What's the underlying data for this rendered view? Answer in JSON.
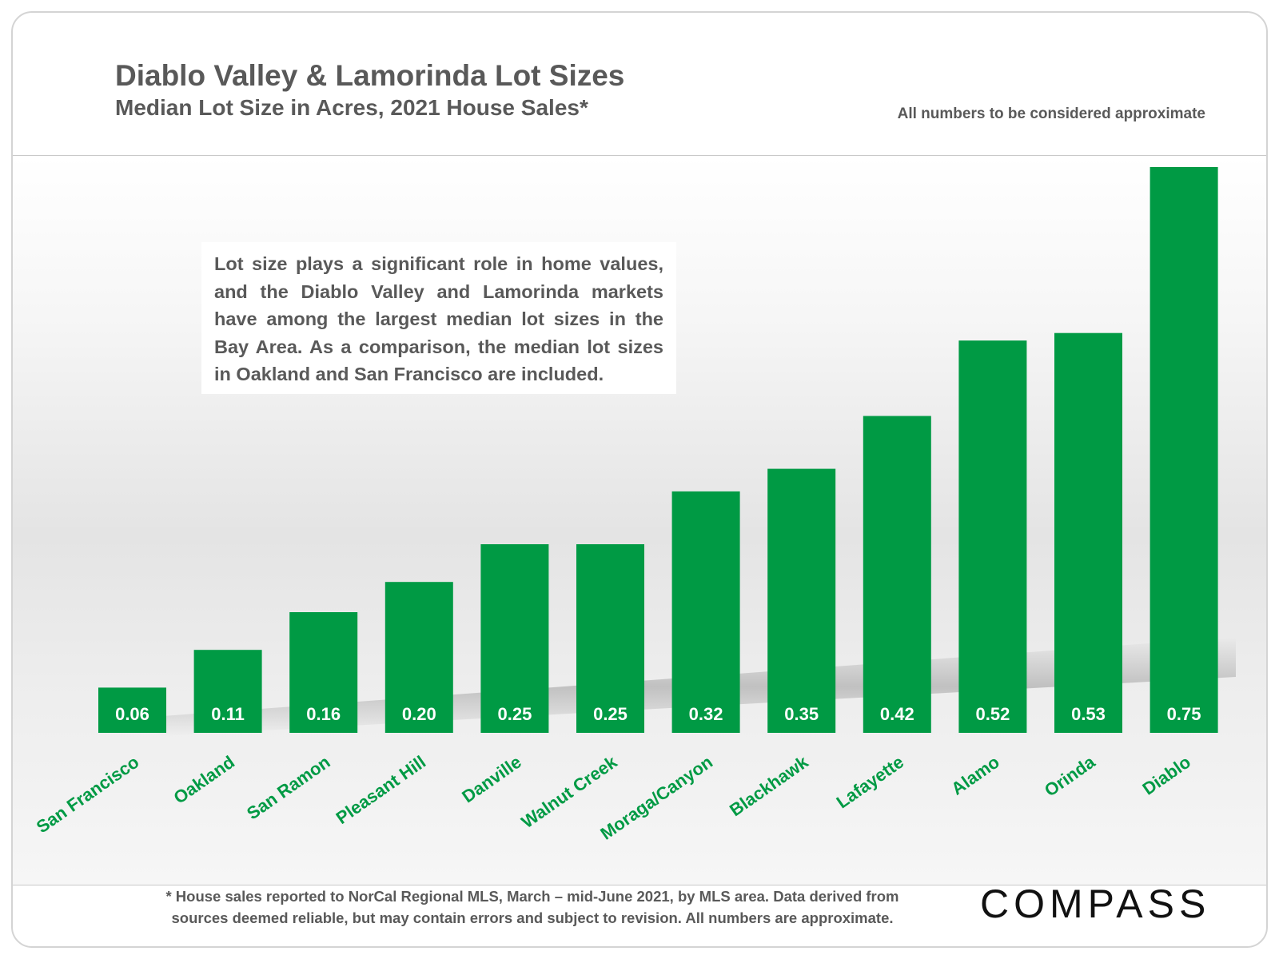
{
  "header": {
    "title": "Diablo Valley & Lamorinda Lot Sizes",
    "subtitle": "Median Lot Size in Acres, 2021 House Sales*",
    "note": "All numbers to be considered approximate"
  },
  "info_text": "Lot size plays a significant role in home values, and the Diablo Valley and Lamorinda markets have among the largest median lot sizes in the Bay Area. As a comparison, the median lot sizes in Oakland and San Francisco are included.",
  "footer": {
    "line1": "* House sales reported to NorCal Regional MLS, March – mid-June 2021, by MLS area. Data derived from",
    "line2": "sources deemed reliable, but may contain errors and subject to revision. All numbers are approximate."
  },
  "logo": {
    "text": "COMPASS"
  },
  "colors": {
    "bar": "#009a44",
    "bar_label": "#ffffff",
    "category_label": "#009a44",
    "text": "#595959"
  },
  "chart_data": {
    "type": "bar",
    "title": "Diablo Valley & Lamorinda Lot Sizes",
    "subtitle": "Median Lot Size in Acres, 2021 House Sales*",
    "categories": [
      "San Francisco",
      "Oakland",
      "San Ramon",
      "Pleasant Hill",
      "Danville",
      "Walnut Creek",
      "Moraga/Canyon",
      "Blackhawk",
      "Lafayette",
      "Alamo",
      "Orinda",
      "Diablo"
    ],
    "values": [
      0.06,
      0.11,
      0.16,
      0.2,
      0.25,
      0.25,
      0.32,
      0.35,
      0.42,
      0.52,
      0.53,
      0.75
    ],
    "value_labels": [
      "0.06",
      "0.11",
      "0.16",
      "0.20",
      "0.25",
      "0.25",
      "0.32",
      "0.35",
      "0.42",
      "0.52",
      "0.53",
      "0.75"
    ],
    "xlabel": "",
    "ylabel": "",
    "ylim": [
      0,
      0.75
    ],
    "grid": false,
    "legend": "none",
    "category_label_rotation": -35
  }
}
